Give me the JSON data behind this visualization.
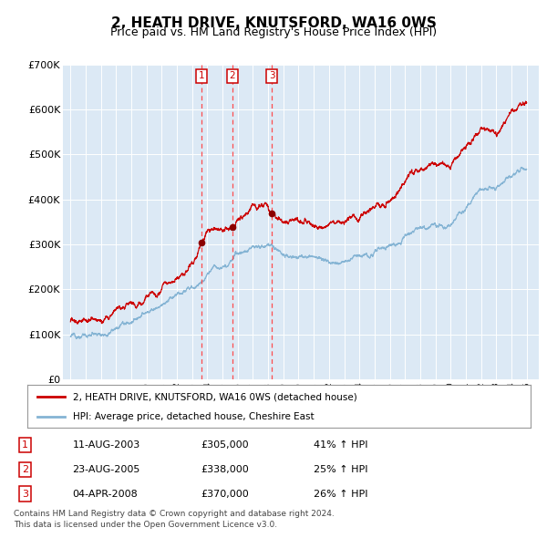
{
  "title": "2, HEATH DRIVE, KNUTSFORD, WA16 0WS",
  "subtitle": "Price paid vs. HM Land Registry's House Price Index (HPI)",
  "title_fontsize": 11,
  "subtitle_fontsize": 9,
  "bg_color": "#dce9f5",
  "grid_color": "#ffffff",
  "red_line_color": "#cc0000",
  "blue_line_color": "#85b4d4",
  "sale_marker_color": "#8b0000",
  "vline_color": "#ff4444",
  "ylim": [
    0,
    700000
  ],
  "ytick_labels": [
    "£0",
    "£100K",
    "£200K",
    "£300K",
    "£400K",
    "£500K",
    "£600K",
    "£700K"
  ],
  "ytick_values": [
    0,
    100000,
    200000,
    300000,
    400000,
    500000,
    600000,
    700000
  ],
  "year_start": 1995,
  "year_end": 2025,
  "xlim_start": 1994.5,
  "xlim_end": 2025.8,
  "sales": [
    {
      "label": "1",
      "date_str": "11-AUG-2003",
      "year": 2003.61,
      "price": 305000
    },
    {
      "label": "2",
      "date_str": "23-AUG-2005",
      "year": 2005.64,
      "price": 338000
    },
    {
      "label": "3",
      "date_str": "04-APR-2008",
      "year": 2008.25,
      "price": 370000
    }
  ],
  "legend_line1": "2, HEATH DRIVE, KNUTSFORD, WA16 0WS (detached house)",
  "legend_line2": "HPI: Average price, detached house, Cheshire East",
  "table_rows": [
    [
      "1",
      "11-AUG-2003",
      "£305,000",
      "41% ↑ HPI"
    ],
    [
      "2",
      "23-AUG-2005",
      "£338,000",
      "25% ↑ HPI"
    ],
    [
      "3",
      "04-APR-2008",
      "£370,000",
      "26% ↑ HPI"
    ]
  ],
  "footnote1": "Contains HM Land Registry data © Crown copyright and database right 2024.",
  "footnote2": "This data is licensed under the Open Government Licence v3.0.",
  "anchors_x": [
    1995,
    1996,
    1997,
    1998,
    1999,
    2000,
    2001,
    2002,
    2003,
    2003.61,
    2004,
    2005,
    2005.64,
    2006,
    2007,
    2008,
    2008.25,
    2009,
    2010,
    2011,
    2012,
    2013,
    2014,
    2015,
    2016,
    2017,
    2018,
    2019,
    2020,
    2021,
    2022,
    2023,
    2024,
    2025
  ],
  "anchors_y_blue": [
    95000,
    98000,
    102000,
    112000,
    128000,
    148000,
    165000,
    185000,
    205000,
    215000,
    240000,
    258000,
    265000,
    275000,
    295000,
    295000,
    292000,
    272000,
    272000,
    268000,
    262000,
    265000,
    272000,
    282000,
    295000,
    318000,
    332000,
    342000,
    338000,
    382000,
    418000,
    428000,
    455000,
    472000
  ],
  "anchors_y_red": [
    128000,
    132000,
    138000,
    148000,
    162000,
    180000,
    198000,
    215000,
    265000,
    305000,
    330000,
    345000,
    338000,
    360000,
    380000,
    385000,
    370000,
    348000,
    348000,
    345000,
    345000,
    350000,
    365000,
    385000,
    408000,
    440000,
    462000,
    478000,
    476000,
    528000,
    558000,
    545000,
    588000,
    612000
  ]
}
